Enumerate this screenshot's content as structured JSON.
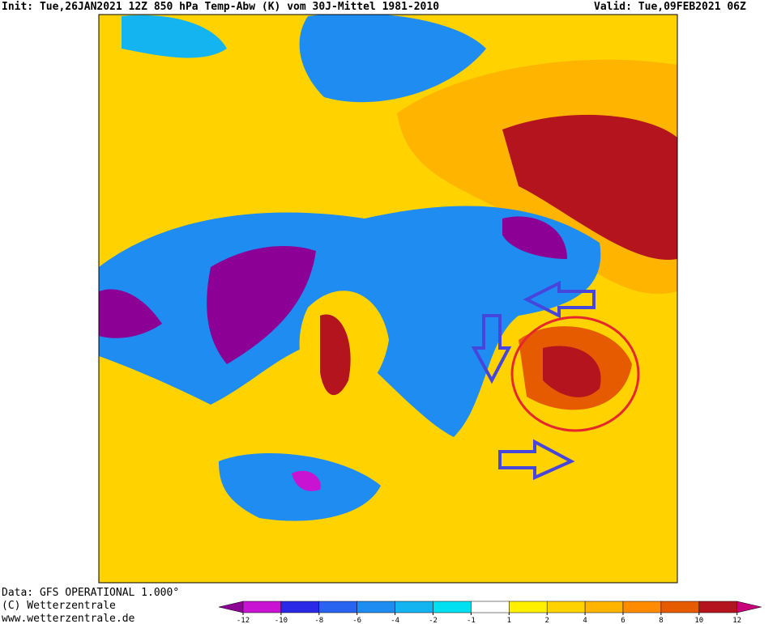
{
  "header": {
    "init": "Init: Tue,26JAN2021 12Z 850 hPa Temp-Abw (K) vom 30J-Mittel 1981-2010",
    "valid": "Valid: Tue,09FEB2021 06Z"
  },
  "footer": [
    "Data: GFS OPERATIONAL 1.000°",
    "(C) Wetterzentrale",
    "www.wetterzentrale.de"
  ],
  "legend": {
    "ticks": [
      -12,
      -10,
      -8,
      -6,
      -4,
      -2,
      -1,
      1,
      2,
      4,
      6,
      8,
      10,
      12
    ],
    "colors": [
      "#8c0096",
      "#c814d2",
      "#2a2ae6",
      "#2864f0",
      "#1e8cf0",
      "#14b4f0",
      "#00e0f0",
      "#ffffff",
      "#fff000",
      "#ffd200",
      "#ffb400",
      "#ff8c00",
      "#e65a00",
      "#b4141e",
      "#c8007a"
    ]
  }
}
